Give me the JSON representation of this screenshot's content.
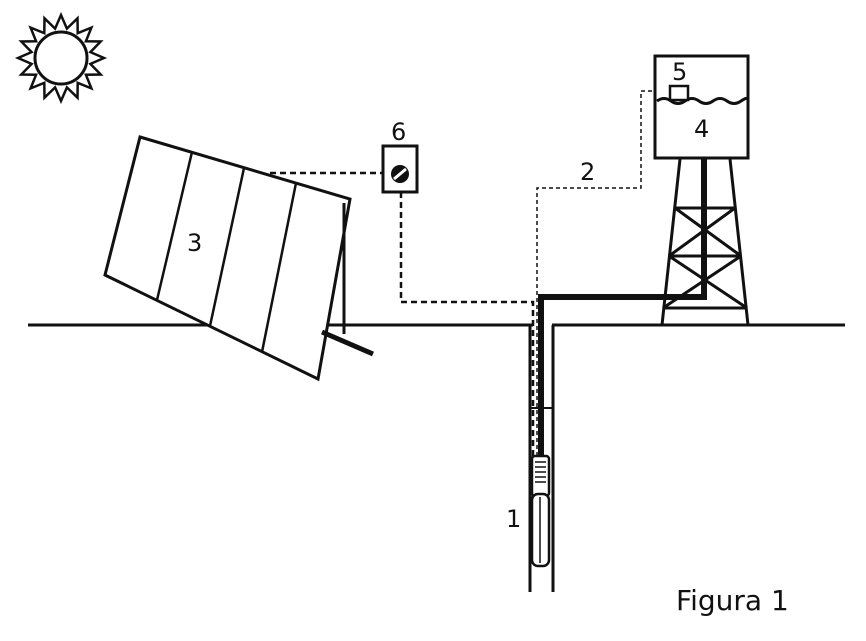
{
  "caption": "Figura 1",
  "labels": {
    "pump": "1",
    "control_wire": "2",
    "solar_panel": "3",
    "water_tank": "4",
    "float_switch": "5",
    "controller": "6"
  }
}
